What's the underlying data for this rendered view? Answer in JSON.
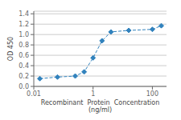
{
  "chart_data": {
    "type": "line",
    "xlabel": "Recombinant  Protein  Concentration\n(ng/ml)",
    "ylabel": "OD 450",
    "x": [
      0.016,
      0.063,
      0.25,
      0.5,
      1.0,
      2.0,
      4.0,
      16.0,
      100.0,
      200.0
    ],
    "values": [
      0.15,
      0.18,
      0.2,
      0.28,
      0.55,
      0.88,
      1.05,
      1.08,
      1.1,
      1.17
    ],
    "log": "x",
    "xlim": [
      0.01,
      300
    ],
    "ylim": [
      0.0,
      1.45
    ],
    "xticks": [
      0.01,
      1,
      100
    ],
    "yticks": [
      {
        "value": 0,
        "label": "0.0"
      },
      0.2,
      0.4,
      0.6,
      0.8,
      {
        "value": 1,
        "label": "1.0"
      },
      1.2,
      1.4
    ],
    "grid": "y",
    "marker": "diamond",
    "line_style": "dashed"
  }
}
